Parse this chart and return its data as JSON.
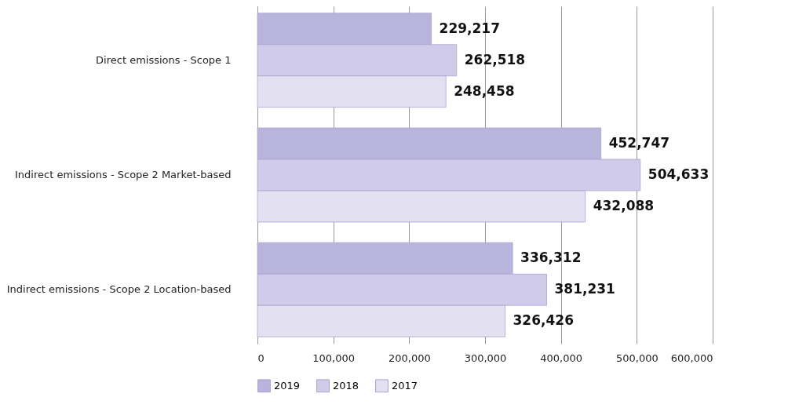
{
  "chart_data": {
    "type": "bar",
    "orientation": "horizontal",
    "categories": [
      "Direct emissions - Scope 1",
      "Indirect emissions - Scope 2 Market-based",
      "Indirect emissions - Scope 2 Location-based"
    ],
    "series": [
      {
        "name": "2019",
        "color": "#b9b4dc",
        "values": [
          229217,
          452747,
          336312
        ],
        "value_labels": [
          "229,217",
          "452,747",
          "336,312"
        ]
      },
      {
        "name": "2018",
        "color": "#cfcbe8",
        "values": [
          262518,
          504633,
          381231
        ],
        "value_labels": [
          "262,518",
          "504,633",
          "381,231"
        ]
      },
      {
        "name": "2017",
        "color": "#e3e0f1",
        "values": [
          248458,
          432088,
          326426
        ],
        "value_labels": [
          "248,458",
          "432,088",
          "326,426"
        ]
      }
    ],
    "xlim": [
      0,
      600000
    ],
    "xticks": [
      0,
      {
        "value": 100000,
        "label": "100,000"
      },
      {
        "value": 200000,
        "label": "200,000"
      },
      {
        "value": 300000,
        "label": "300,000"
      },
      {
        "value": 400000,
        "label": "400,000"
      },
      {
        "value": 500000,
        "label": "500,000"
      },
      {
        "value": 600000,
        "label": "600,000"
      }
    ],
    "grid": "x",
    "legend": "bottom left"
  }
}
